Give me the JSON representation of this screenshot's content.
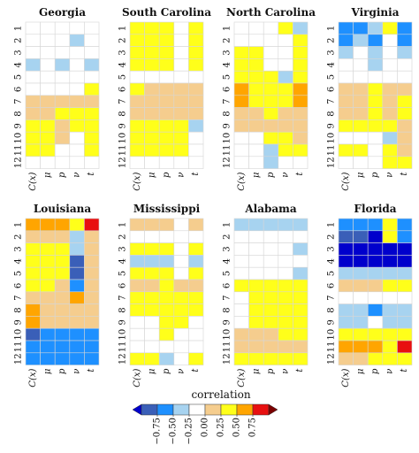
{
  "chart_data": {
    "type": "heatmap",
    "rows": [
      "1",
      "2",
      "3",
      "4",
      "5",
      "6",
      "7",
      "8",
      "9",
      "10",
      "11",
      "12"
    ],
    "columns": [
      "C(x)",
      "μ",
      "p",
      "ν",
      "t"
    ],
    "legend": {
      "title": "correlation",
      "ticks": [
        "−0.75",
        "−0.50",
        "−0.25",
        "0.00",
        "0.25",
        "0.50",
        "0.75"
      ],
      "classes": [
        {
          "range": [
            -1.0,
            -0.875
          ],
          "color": "#0000cc"
        },
        {
          "range": [
            -0.875,
            -0.625
          ],
          "color": "#3a5fb8"
        },
        {
          "range": [
            -0.625,
            -0.375
          ],
          "color": "#1e90ff"
        },
        {
          "range": [
            -0.375,
            -0.125
          ],
          "color": "#a7d3f0"
        },
        {
          "range": [
            -0.125,
            0.125
          ],
          "color": "#ffffff"
        },
        {
          "range": [
            0.125,
            0.375
          ],
          "color": "#f5cd8e"
        },
        {
          "range": [
            0.375,
            0.625
          ],
          "color": "#ffff1a"
        },
        {
          "range": [
            0.625,
            0.875
          ],
          "color": "#ffa500"
        },
        {
          "range": [
            0.875,
            1.125
          ],
          "color": "#e81010"
        },
        {
          "range": [
            1.125,
            1.375
          ],
          "color": "#7a0000"
        }
      ]
    },
    "panels": [
      {
        "name": "Georgia",
        "values": [
          [
            0,
            0,
            0,
            0,
            0
          ],
          [
            0,
            0,
            0,
            -0.25,
            0
          ],
          [
            0,
            0,
            0,
            0,
            0
          ],
          [
            -0.25,
            0,
            -0.25,
            0,
            -0.25
          ],
          [
            0,
            0,
            0,
            0,
            0
          ],
          [
            0,
            0,
            0,
            0,
            0.5
          ],
          [
            0.25,
            0.25,
            0.25,
            0.25,
            0.25
          ],
          [
            0.25,
            0.25,
            0.5,
            0.5,
            0.5
          ],
          [
            0.5,
            0.5,
            0.25,
            0.5,
            0.5
          ],
          [
            0.5,
            0.5,
            0.25,
            0,
            0.5
          ],
          [
            0.5,
            0.5,
            0,
            0,
            0.5
          ],
          [
            0,
            0,
            0,
            0,
            0
          ]
        ]
      },
      {
        "name": "South Carolina",
        "values": [
          [
            0.5,
            0.5,
            0.5,
            0,
            0.5
          ],
          [
            0.5,
            0.5,
            0.5,
            0,
            0.5
          ],
          [
            0.5,
            0.5,
            0.5,
            0,
            0.5
          ],
          [
            0.5,
            0.5,
            0.5,
            0,
            0.5
          ],
          [
            0,
            0,
            0,
            0,
            0
          ],
          [
            0.5,
            0.25,
            0.25,
            0.25,
            0.25
          ],
          [
            0.25,
            0.25,
            0.25,
            0.25,
            0.25
          ],
          [
            0.25,
            0.25,
            0.25,
            0.25,
            0.25
          ],
          [
            0.5,
            0.5,
            0.5,
            0.5,
            -0.25
          ],
          [
            0.5,
            0.5,
            0.5,
            0.5,
            0
          ],
          [
            0.5,
            0.5,
            0.5,
            0.5,
            0
          ],
          [
            0,
            0,
            0,
            0,
            0
          ]
        ]
      },
      {
        "name": "North Carolina",
        "values": [
          [
            0,
            0,
            0,
            0.5,
            -0.25
          ],
          [
            0,
            0,
            0,
            0,
            0.5
          ],
          [
            0.5,
            0.5,
            0,
            0,
            0.5
          ],
          [
            0.5,
            0.5,
            0,
            0,
            0.5
          ],
          [
            0.5,
            0.5,
            0.5,
            -0.25,
            0.5
          ],
          [
            0.75,
            0.5,
            0.5,
            0.5,
            0.75
          ],
          [
            0.75,
            0.5,
            0.5,
            0.5,
            0.75
          ],
          [
            0.25,
            0.25,
            0.5,
            0.25,
            0.25
          ],
          [
            0.25,
            0.25,
            0.25,
            0.25,
            0.25
          ],
          [
            0,
            0,
            0.5,
            0.5,
            0.25
          ],
          [
            0,
            0,
            -0.25,
            0.5,
            0.5
          ],
          [
            0,
            0,
            -0.25,
            0,
            0
          ]
        ]
      },
      {
        "name": "Virginia",
        "values": [
          [
            -0.625,
            -0.625,
            -0.25,
            0.5,
            -0.625
          ],
          [
            -0.625,
            -0.25,
            -0.625,
            0,
            -0.625
          ],
          [
            -0.25,
            0,
            -0.25,
            0,
            -0.25
          ],
          [
            0,
            0,
            -0.25,
            0,
            0
          ],
          [
            0,
            0,
            0,
            0,
            0
          ],
          [
            0.25,
            0.25,
            0.5,
            0.25,
            0.25
          ],
          [
            0.25,
            0.25,
            0.5,
            0.25,
            0.5
          ],
          [
            0.25,
            0.25,
            0.5,
            0.25,
            0.5
          ],
          [
            0.5,
            0.5,
            0.5,
            0.5,
            0.25
          ],
          [
            0,
            0,
            0,
            -0.25,
            0.25
          ],
          [
            0.5,
            0.5,
            0,
            0.5,
            0.25
          ],
          [
            0,
            0,
            0,
            0.5,
            0.5
          ]
        ]
      },
      {
        "name": "Louisiana",
        "values": [
          [
            0.75,
            0.75,
            0.75,
            0.5,
            1.0
          ],
          [
            0.25,
            0.25,
            0.25,
            -0.25,
            0.25
          ],
          [
            0.5,
            0.5,
            0.5,
            -0.25,
            0.25
          ],
          [
            0.5,
            0.5,
            0.5,
            -0.75,
            0.25
          ],
          [
            0.5,
            0.5,
            0.5,
            -0.75,
            0.25
          ],
          [
            0.5,
            0.5,
            0.25,
            -0.625,
            0.25
          ],
          [
            0.25,
            0.25,
            0.25,
            0.75,
            0.25
          ],
          [
            0.75,
            0.25,
            0.25,
            0.25,
            0.25
          ],
          [
            0.75,
            0.25,
            0.25,
            0.25,
            0.25
          ],
          [
            -0.75,
            -0.625,
            -0.625,
            -0.625,
            -0.625
          ],
          [
            -0.625,
            -0.625,
            -0.625,
            -0.625,
            -0.625
          ],
          [
            -0.625,
            -0.625,
            -0.625,
            -0.625,
            -0.625
          ]
        ]
      },
      {
        "name": "Mississippi",
        "values": [
          [
            0.25,
            0.25,
            0.25,
            0,
            0.25
          ],
          [
            0,
            0,
            0,
            0,
            0
          ],
          [
            0.5,
            0.5,
            0.5,
            0,
            0.5
          ],
          [
            -0.25,
            -0.25,
            -0.25,
            0,
            -0.25
          ],
          [
            0.5,
            0.5,
            0.5,
            0,
            0.5
          ],
          [
            0.25,
            0.25,
            0.5,
            0.25,
            0.25
          ],
          [
            0.5,
            0.5,
            0.5,
            0.5,
            0.5
          ],
          [
            0.5,
            0.5,
            0.5,
            0.5,
            0.5
          ],
          [
            0,
            0,
            0.5,
            0.5,
            0
          ],
          [
            0,
            0,
            0.5,
            0,
            0
          ],
          [
            0,
            0,
            0,
            0,
            0
          ],
          [
            0.5,
            0.5,
            -0.25,
            0,
            0.5
          ]
        ]
      },
      {
        "name": "Alabama",
        "values": [
          [
            -0.25,
            -0.25,
            -0.25,
            -0.25,
            -0.25
          ],
          [
            0,
            0,
            0,
            0,
            0
          ],
          [
            0,
            0,
            0,
            0,
            -0.25
          ],
          [
            0,
            0,
            0,
            0,
            0
          ],
          [
            0,
            0,
            0,
            0,
            -0.25
          ],
          [
            0.5,
            0.5,
            0.5,
            0.5,
            0.5
          ],
          [
            0,
            0.5,
            0.5,
            0.5,
            0.5
          ],
          [
            0,
            0.5,
            0.5,
            0.5,
            0.5
          ],
          [
            0,
            0.5,
            0.5,
            0.5,
            0.5
          ],
          [
            0.25,
            0.25,
            0.25,
            0.5,
            0.5
          ],
          [
            0.25,
            0.25,
            0.25,
            0.25,
            0.25
          ],
          [
            0.5,
            0.5,
            0.5,
            0.5,
            0.5
          ]
        ]
      },
      {
        "name": "Florida",
        "values": [
          [
            -0.625,
            -0.625,
            -0.625,
            0.5,
            -0.625
          ],
          [
            -0.75,
            -0.75,
            -1.0,
            0.5,
            -0.625
          ],
          [
            -1.0,
            -1.0,
            -1.0,
            -1.0,
            -1.0
          ],
          [
            -1.0,
            -1.0,
            -1.0,
            -1.0,
            -1.0
          ],
          [
            -0.25,
            -0.25,
            -0.25,
            -0.25,
            -0.25
          ],
          [
            0.25,
            0.25,
            0.25,
            0.5,
            0.5
          ],
          [
            0,
            0,
            0,
            0,
            0
          ],
          [
            -0.25,
            -0.25,
            -0.625,
            -0.25,
            -0.25
          ],
          [
            -0.25,
            -0.25,
            0,
            -0.25,
            -0.25
          ],
          [
            0.5,
            0.5,
            0.5,
            0.5,
            0.5
          ],
          [
            0.75,
            0.75,
            0.75,
            0.5,
            1.0
          ],
          [
            0.25,
            0.25,
            0.5,
            0.5,
            0.5
          ]
        ]
      }
    ]
  }
}
